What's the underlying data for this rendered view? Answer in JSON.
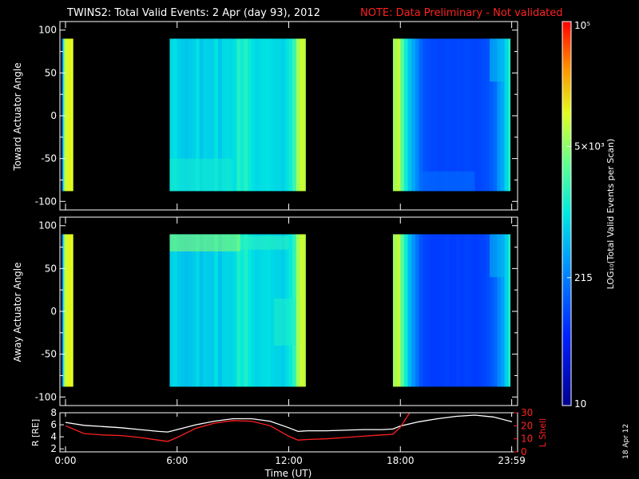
{
  "title": {
    "main": "TWINS2: Total Valid Events:  2 Apr (day  93), 2012",
    "note": "NOTE: Data Preliminary - Not validated",
    "main_color": "#ffffff",
    "note_color": "#ff2020"
  },
  "date_stamp": "18 Apr 12",
  "chart_data": [
    {
      "type": "heatmap",
      "panel": "toward",
      "ylabel": "Toward Actuator Angle",
      "ylim": [
        -110,
        110
      ],
      "yticks": [
        100,
        50,
        0,
        -50,
        -100
      ],
      "angle_range": [
        -88,
        90
      ],
      "x_unit": "hours UT",
      "xlim": [
        -0.3,
        24.3
      ],
      "xticks": [
        0,
        6,
        12,
        18,
        23.983
      ],
      "xtick_labels": [
        "0:00",
        "6:00",
        "12:00",
        "18:00",
        "23:59"
      ],
      "zscale": "log",
      "zrange": [
        10,
        100000
      ],
      "data_intervals_hours": [
        [
          -0.2,
          0.4
        ],
        [
          5.6,
          12.9
        ],
        [
          17.6,
          23.9
        ]
      ],
      "columns_hours": [
        -0.2,
        -0.12,
        -0.05,
        0.05,
        0.12,
        0.2,
        0.3,
        5.6,
        5.8,
        6.0,
        6.2,
        6.4,
        6.6,
        6.8,
        7.0,
        7.2,
        7.4,
        7.6,
        7.8,
        8.0,
        8.2,
        8.4,
        8.6,
        8.8,
        9.0,
        9.2,
        9.4,
        9.6,
        9.8,
        10.0,
        10.2,
        10.4,
        10.6,
        10.8,
        11.0,
        11.2,
        11.4,
        11.6,
        11.8,
        12.0,
        12.2,
        12.4,
        12.6,
        12.8,
        17.6,
        17.8,
        18.0,
        18.2,
        18.4,
        18.6,
        18.8,
        19.0,
        19.2,
        19.4,
        19.6,
        19.8,
        20.0,
        20.2,
        20.4,
        20.6,
        20.8,
        21.0,
        21.2,
        21.4,
        21.6,
        21.8,
        22.0,
        22.2,
        22.4,
        22.6,
        22.8,
        23.0,
        23.2,
        23.4,
        23.6,
        23.8
      ],
      "column_events": [
        180,
        3000,
        9000,
        10000,
        12000,
        12000,
        11000,
        800,
        900,
        700,
        650,
        600,
        650,
        700,
        900,
        600,
        750,
        700,
        700,
        950,
        600,
        800,
        850,
        800,
        900,
        1500,
        1200,
        1600,
        1100,
        900,
        800,
        850,
        900,
        950,
        850,
        800,
        800,
        700,
        900,
        1200,
        2000,
        6000,
        9000,
        8000,
        6000,
        8000,
        3000,
        1200,
        600,
        400,
        250,
        150,
        110,
        100,
        95,
        95,
        90,
        90,
        95,
        90,
        90,
        95,
        90,
        95,
        95,
        90,
        90,
        95,
        100,
        110,
        130,
        160,
        300,
        400,
        800,
        1500
      ],
      "features": [
        {
          "label": "bottom-edge-enhancement",
          "hours": [
            5.6,
            9.0
          ],
          "angle": [
            -88,
            -50
          ],
          "events": 1300
        },
        {
          "label": "tail-depletion",
          "hours": [
            19.0,
            22.0
          ],
          "angle": [
            -88,
            -65
          ],
          "events": 180
        },
        {
          "label": "late-top-bright",
          "hours": [
            22.8,
            23.6
          ],
          "angle": [
            40,
            90
          ],
          "events": 600
        }
      ]
    },
    {
      "type": "heatmap",
      "panel": "away",
      "ylabel": "Away Actuator Angle",
      "ylim": [
        -110,
        110
      ],
      "yticks": [
        100,
        50,
        0,
        -50,
        -100
      ],
      "angle_range": [
        -88,
        90
      ],
      "x_unit": "hours UT",
      "xlim": [
        -0.3,
        24.3
      ],
      "xticks": [
        0,
        6,
        12,
        18,
        23.983
      ],
      "xtick_labels": [
        "0:00",
        "6:00",
        "12:00",
        "18:00",
        "23:59"
      ],
      "zscale": "log",
      "zrange": [
        10,
        100000
      ],
      "data_intervals_hours": [
        [
          -0.2,
          0.4
        ],
        [
          5.6,
          12.9
        ],
        [
          17.6,
          23.9
        ]
      ],
      "columns_hours": [
        -0.2,
        -0.12,
        -0.05,
        0.05,
        0.12,
        0.2,
        0.3,
        5.6,
        5.8,
        6.0,
        6.2,
        6.4,
        6.6,
        6.8,
        7.0,
        7.2,
        7.4,
        7.6,
        7.8,
        8.0,
        8.2,
        8.4,
        8.6,
        8.8,
        9.0,
        9.2,
        9.4,
        9.6,
        9.8,
        10.0,
        10.2,
        10.4,
        10.6,
        10.8,
        11.0,
        11.2,
        11.4,
        11.6,
        11.8,
        12.0,
        12.2,
        12.4,
        12.6,
        12.8,
        17.6,
        17.8,
        18.0,
        18.2,
        18.4,
        18.6,
        18.8,
        19.0,
        19.2,
        19.4,
        19.6,
        19.8,
        20.0,
        20.2,
        20.4,
        20.6,
        20.8,
        21.0,
        21.2,
        21.4,
        21.6,
        21.8,
        22.0,
        22.2,
        22.4,
        22.6,
        22.8,
        23.0,
        23.2,
        23.4,
        23.6,
        23.8
      ],
      "column_events": [
        180,
        3000,
        9000,
        10000,
        12000,
        12000,
        11000,
        700,
        800,
        650,
        600,
        560,
        600,
        650,
        800,
        560,
        700,
        650,
        650,
        900,
        560,
        750,
        800,
        750,
        850,
        1400,
        1100,
        1500,
        1000,
        850,
        750,
        800,
        850,
        900,
        800,
        750,
        750,
        650,
        850,
        1100,
        1800,
        6000,
        9000,
        8000,
        6000,
        8000,
        3000,
        1200,
        500,
        300,
        180,
        110,
        90,
        85,
        80,
        80,
        80,
        80,
        85,
        80,
        80,
        85,
        80,
        85,
        85,
        80,
        80,
        85,
        90,
        100,
        120,
        150,
        250,
        350,
        700,
        1400
      ],
      "features": [
        {
          "label": "upper-enhanced-band",
          "hours": [
            5.6,
            9.4
          ],
          "angle": [
            70,
            90
          ],
          "events": 5500
        },
        {
          "label": "upper-enhanced-band-faint",
          "hours": [
            9.4,
            12.0
          ],
          "angle": [
            72,
            88
          ],
          "events": 1800
        },
        {
          "label": "mid-enhancement",
          "hours": [
            11.2,
            12.4
          ],
          "angle": [
            -40,
            15
          ],
          "events": 1500
        },
        {
          "label": "late-top-bright",
          "hours": [
            22.8,
            23.6
          ],
          "angle": [
            40,
            90
          ],
          "events": 500
        }
      ]
    },
    {
      "type": "line",
      "panel": "orbit",
      "ylabel": "R [RE]",
      "ylim": [
        1.5,
        8
      ],
      "yticks": [
        2,
        4,
        6,
        8
      ],
      "y2label": "L Shell",
      "y2lim": [
        0,
        30
      ],
      "y2ticks": [
        0,
        10,
        20,
        30
      ],
      "xlabel": "Time (UT)",
      "xlim": [
        -0.3,
        24.3
      ],
      "xticks": [
        0,
        6,
        12,
        18,
        23.983
      ],
      "xtick_labels": [
        "0:00",
        "6:00",
        "12:00",
        "18:00",
        "23:59"
      ],
      "series": [
        {
          "axis": "left",
          "color": "#ffffff",
          "x": [
            0,
            1,
            2,
            3,
            4,
            5,
            5.5,
            6,
            7,
            8,
            9,
            10,
            11,
            12,
            12.5,
            13,
            14,
            15,
            16,
            17,
            17.6,
            18,
            19,
            20,
            21,
            22,
            23,
            24
          ],
          "y": [
            6.4,
            5.9,
            5.7,
            5.5,
            5.2,
            4.9,
            4.8,
            5.2,
            6.0,
            6.6,
            7.0,
            7.0,
            6.6,
            5.5,
            4.9,
            5.0,
            5.0,
            5.1,
            5.2,
            5.2,
            5.3,
            5.8,
            6.5,
            7.0,
            7.4,
            7.6,
            7.3,
            6.5
          ]
        },
        {
          "axis": "right",
          "color": "#ff2020",
          "x": [
            0,
            1,
            2,
            3,
            4,
            5,
            5.5,
            6,
            7,
            8,
            9,
            10,
            11,
            12,
            12.5,
            13,
            14,
            15,
            16,
            17,
            17.6,
            18,
            18.5
          ],
          "y": [
            20,
            14,
            13,
            12.5,
            11,
            9,
            8,
            11,
            18,
            22,
            24,
            23.5,
            20,
            12,
            9,
            9.5,
            10,
            11,
            12,
            13,
            13.5,
            19,
            30
          ]
        }
      ]
    }
  ],
  "colorbar": {
    "label": "LOG₁₀(Total Valid Events per Scan)",
    "scale": "log",
    "range": [
      10,
      100000
    ],
    "ticks": [
      {
        "value": 100000,
        "label": "10⁵"
      },
      {
        "value": 5000,
        "label": "5×10³"
      },
      {
        "value": 215,
        "label": "215"
      },
      {
        "value": 10,
        "label": "10"
      }
    ]
  }
}
